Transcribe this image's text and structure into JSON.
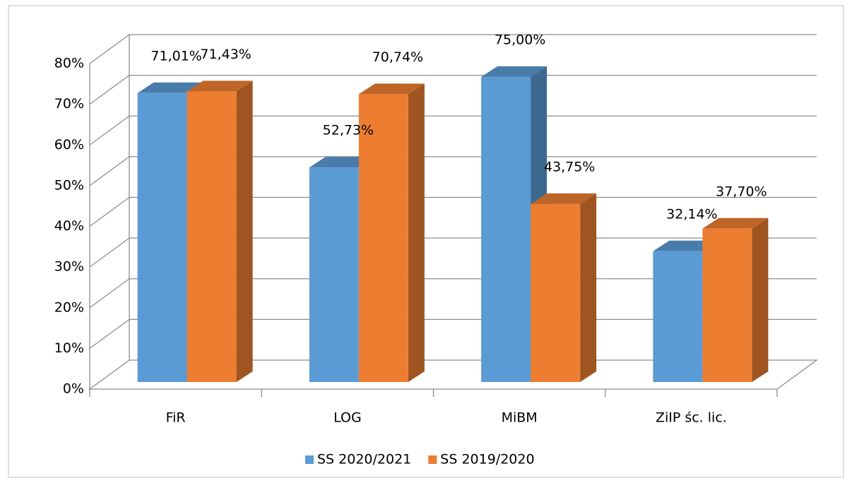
{
  "chart_data": {
    "type": "bar3d",
    "categories": [
      "FiR",
      "LOG",
      "MiBM",
      "ZiIP śc. lic."
    ],
    "series": [
      {
        "name": "SS 2020/2021",
        "color": "#5b9bd5",
        "values": [
          71.01,
          52.73,
          75.0,
          32.14
        ],
        "value_labels": [
          "71,01%",
          "52,73%",
          "75,00%",
          "32,14%"
        ]
      },
      {
        "name": "SS 2019/2020",
        "color": "#ed7d31",
        "values": [
          71.43,
          70.74,
          43.75,
          37.7
        ],
        "value_labels": [
          "71,43%",
          "70,74%",
          "43,75%",
          "37,70%"
        ]
      }
    ],
    "ylim": [
      0,
      80
    ],
    "yticks": [
      {
        "value": 0,
        "label": "0%"
      },
      {
        "value": 10,
        "label": "10%"
      },
      {
        "value": 20,
        "label": "20%"
      },
      {
        "value": 30,
        "label": "30%"
      },
      {
        "value": 40,
        "label": "40%"
      },
      {
        "value": 50,
        "label": "50%"
      },
      {
        "value": 60,
        "label": "60%"
      },
      {
        "value": 70,
        "label": "70%"
      },
      {
        "value": 80,
        "label": "80%"
      }
    ],
    "grid": true,
    "legend": "bottom"
  }
}
